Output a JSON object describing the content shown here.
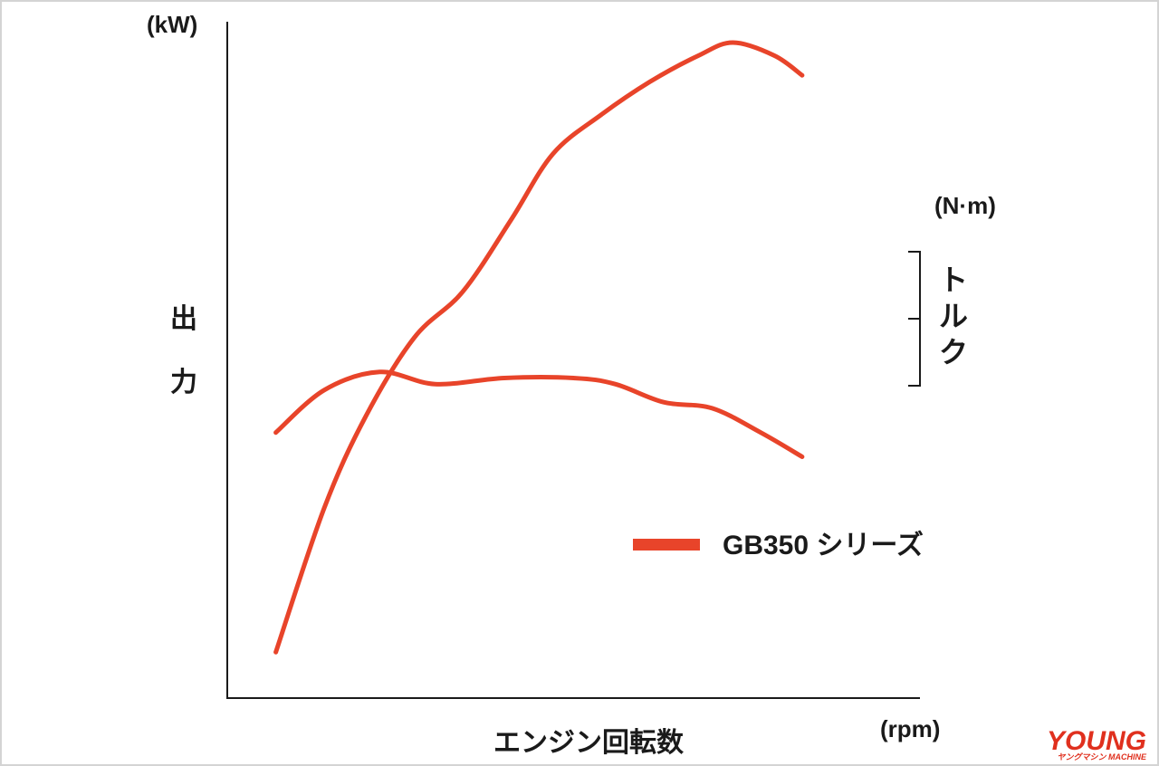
{
  "colors": {
    "series": "#e8442a",
    "axis": "#1a1a1a",
    "watermark": "#e0301e"
  },
  "chart_data": {
    "type": "line",
    "title": "",
    "xlabel": "エンジン回転数",
    "xunit": "(rpm)",
    "ylabel_left": "出力",
    "yunit_left": "(kW)",
    "ylabel_right": "トルク",
    "yunit_right": "(N·m)",
    "ylim_left": [
      0,
      100
    ],
    "ylim_right": [
      0,
      100
    ],
    "xlim": [
      0,
      100
    ],
    "grid": false,
    "tick_labels": false,
    "legend_position": "bottom-right",
    "legend": [
      {
        "label": "GB350 シリーズ",
        "color": "#e8442a"
      }
    ],
    "series": [
      {
        "name": "GB350 シリーズ",
        "axis": "left",
        "measure": "出力",
        "x": [
          7,
          14,
          20,
          27,
          34,
          41,
          47,
          54,
          61,
          68,
          73,
          79,
          83
        ],
        "y": [
          7,
          29,
          43,
          55,
          62,
          73,
          83,
          89,
          94,
          98,
          100,
          98,
          95
        ]
      },
      {
        "name": "GB350 シリーズ",
        "axis": "right",
        "measure": "トルク",
        "x": [
          7,
          14,
          22,
          30,
          40,
          50,
          56,
          63,
          70,
          77,
          83
        ],
        "y": [
          55,
          62,
          65,
          63,
          64,
          64,
          63,
          60,
          59,
          55,
          51
        ]
      }
    ]
  },
  "watermark": {
    "main": "YOUNG",
    "sub": "ヤングマシン MACHINE"
  }
}
